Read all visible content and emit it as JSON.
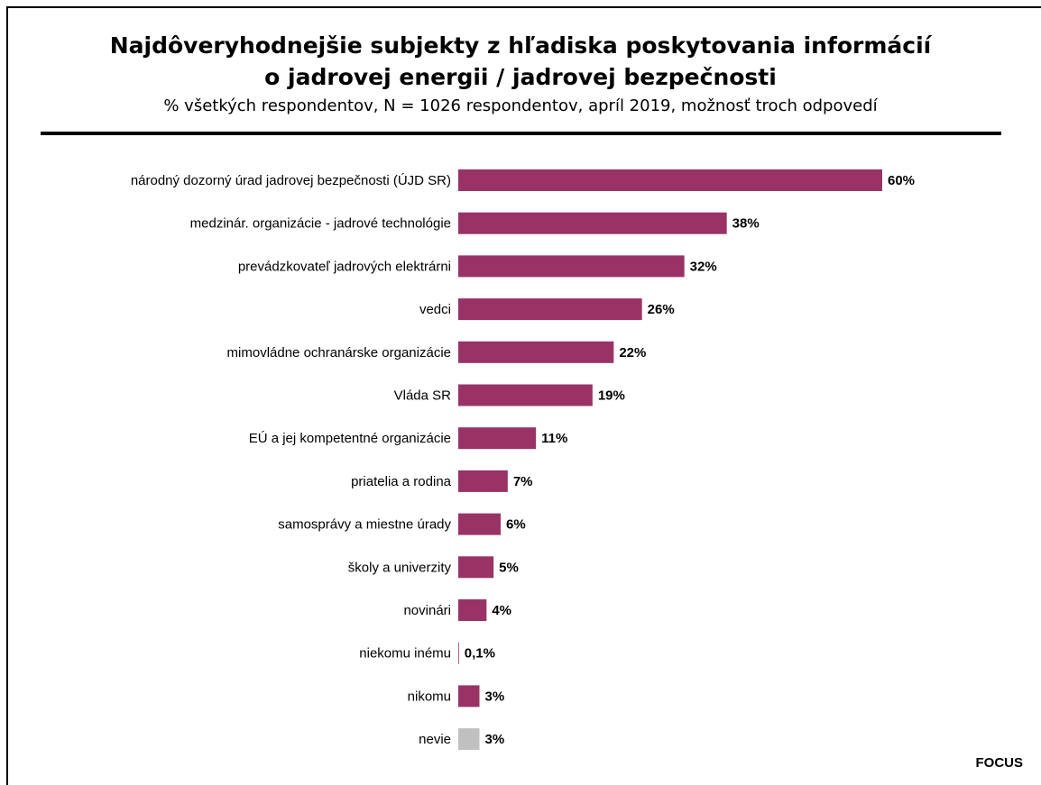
{
  "header": {
    "title_line1": "Najdôveryhodnejšie subjekty z hľadiska poskytovania informácií",
    "title_line2": "o jadrovej energii / jadrovej bezpečnosti",
    "subtitle": "% všetkých respondentov, N = 1026 respondentov, apríl 2019, možnosť troch odpovedí"
  },
  "source_label": "FOCUS",
  "colors": {
    "bar": "#993366",
    "bar_dont_know": "#c0c0c0"
  },
  "chart_data": {
    "type": "bar",
    "orientation": "horizontal",
    "categories": [
      "národný dozorný úrad jadrovej bezpečnosti (ÚJD SR)",
      "medzinár. organizácie - jadrové technológie",
      "prevádzkovateľ jadrových elektrárni",
      "vedci",
      "mimovládne ochranárske organizácie",
      "Vláda SR",
      "EÚ a jej kompetentné organizácie",
      "priatelia a rodina",
      "samosprávy a miestne úrady",
      "školy a univerzity",
      "novinári",
      "niekomu inému",
      "nikomu",
      "nevie"
    ],
    "values": [
      60,
      38,
      32,
      26,
      22,
      19,
      11,
      7,
      6,
      5,
      4,
      0.1,
      3,
      3
    ],
    "labels": [
      "60%",
      "38%",
      "32%",
      "26%",
      "22%",
      "19%",
      "11%",
      "7%",
      "6%",
      "5%",
      "4%",
      "0,1%",
      "3%",
      "3%"
    ],
    "title": "Najdôveryhodnejšie subjekty z hľadiska poskytovania informácií o jadrovej energii / jadrovej bezpečnosti",
    "xlim": [
      0,
      60
    ],
    "grid": false,
    "legend": "none"
  }
}
